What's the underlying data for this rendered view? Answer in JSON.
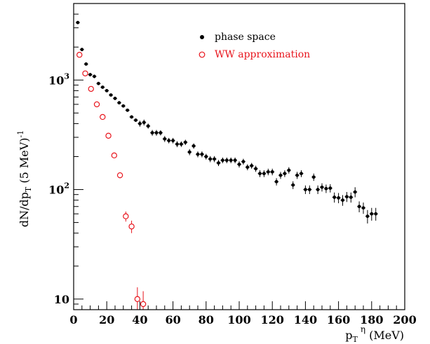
{
  "chart_data": {
    "type": "scatter",
    "xlabel": {
      "main": "p",
      "sub": "T",
      "sup": "η",
      "unit": " (MeV)"
    },
    "ylabel": {
      "main": "dN/dp",
      "sub": "T",
      "unit": " (5 MeV)",
      "sup": "-1"
    },
    "xlim": [
      0,
      200
    ],
    "ylim": [
      8,
      5000
    ],
    "yscale": "log",
    "x_ticks": [
      "0",
      "20",
      "40",
      "60",
      "80",
      "100",
      "120",
      "140",
      "160",
      "180",
      "200"
    ],
    "y_ticks": [
      {
        "value": 10,
        "base": "10",
        "exp": ""
      },
      {
        "value": 100,
        "base": "10",
        "exp": "2"
      },
      {
        "value": 1000,
        "base": "10",
        "exp": "3"
      }
    ],
    "grid": false,
    "legend_position": "top-right",
    "series": [
      {
        "name": "phase space",
        "color": "#000000",
        "marker": "filled-circle",
        "points": [
          [
            2.5,
            3350,
            0
          ],
          [
            5,
            1900,
            0
          ],
          [
            7.5,
            1400,
            0
          ],
          [
            10,
            1120,
            0
          ],
          [
            12.5,
            1080,
            40
          ],
          [
            15,
            930,
            0
          ],
          [
            17.5,
            860,
            0
          ],
          [
            20,
            800,
            0
          ],
          [
            22.5,
            730,
            0
          ],
          [
            25,
            680,
            0
          ],
          [
            27.5,
            620,
            0
          ],
          [
            30,
            580,
            0
          ],
          [
            32.5,
            530,
            0
          ],
          [
            35,
            460,
            0
          ],
          [
            37.5,
            430,
            0
          ],
          [
            40,
            400,
            25
          ],
          [
            42.5,
            410,
            25
          ],
          [
            45,
            380,
            20
          ],
          [
            47.5,
            330,
            20
          ],
          [
            50,
            330,
            20
          ],
          [
            52.5,
            330,
            18
          ],
          [
            55,
            290,
            18
          ],
          [
            57.5,
            280,
            16
          ],
          [
            60,
            280,
            16
          ],
          [
            62.5,
            260,
            16
          ],
          [
            65,
            260,
            15
          ],
          [
            67.5,
            270,
            15
          ],
          [
            70,
            220,
            14
          ],
          [
            72.5,
            250,
            14
          ],
          [
            75,
            210,
            13
          ],
          [
            77.5,
            210,
            13
          ],
          [
            80,
            200,
            12
          ],
          [
            82.5,
            190,
            12
          ],
          [
            85,
            190,
            12
          ],
          [
            87.5,
            175,
            11
          ],
          [
            90,
            185,
            11
          ],
          [
            92.5,
            185,
            11
          ],
          [
            95,
            185,
            11
          ],
          [
            97.5,
            185,
            11
          ],
          [
            100,
            170,
            11
          ],
          [
            102.5,
            180,
            11
          ],
          [
            105,
            160,
            10
          ],
          [
            107.5,
            165,
            10
          ],
          [
            110,
            155,
            10
          ],
          [
            112.5,
            140,
            10
          ],
          [
            115,
            140,
            10
          ],
          [
            117.5,
            145,
            10
          ],
          [
            120,
            145,
            10
          ],
          [
            122.5,
            118,
            9
          ],
          [
            125,
            135,
            10
          ],
          [
            127.5,
            140,
            10
          ],
          [
            130,
            150,
            10
          ],
          [
            132.5,
            110,
            9
          ],
          [
            135,
            135,
            10
          ],
          [
            137.5,
            140,
            10
          ],
          [
            140,
            100,
            9
          ],
          [
            142.5,
            100,
            9
          ],
          [
            145,
            130,
            10
          ],
          [
            147.5,
            100,
            9
          ],
          [
            150,
            105,
            9
          ],
          [
            152.5,
            102,
            9
          ],
          [
            155,
            103,
            9
          ],
          [
            157.5,
            85,
            9
          ],
          [
            160,
            84,
            9
          ],
          [
            162.5,
            80,
            9
          ],
          [
            165,
            86,
            9
          ],
          [
            167.5,
            85,
            9
          ],
          [
            170,
            95,
            10
          ],
          [
            172.5,
            70,
            8
          ],
          [
            175,
            68,
            8
          ],
          [
            177.5,
            57,
            8
          ],
          [
            180,
            60,
            8
          ],
          [
            182.5,
            60,
            8
          ]
        ]
      },
      {
        "name": "WW approximation",
        "color": "#e8141c",
        "marker": "open-circle",
        "points": [
          [
            3.5,
            1700,
            0
          ],
          [
            7,
            1150,
            0
          ],
          [
            10.5,
            830,
            0
          ],
          [
            14,
            600,
            0
          ],
          [
            17.5,
            460,
            0
          ],
          [
            21,
            310,
            0
          ],
          [
            24.5,
            205,
            0
          ],
          [
            28,
            135,
            8
          ],
          [
            31.5,
            57,
            6
          ],
          [
            35,
            46,
            6
          ],
          [
            38.5,
            10,
            2.8
          ],
          [
            42,
            9,
            2.8
          ]
        ]
      }
    ]
  }
}
